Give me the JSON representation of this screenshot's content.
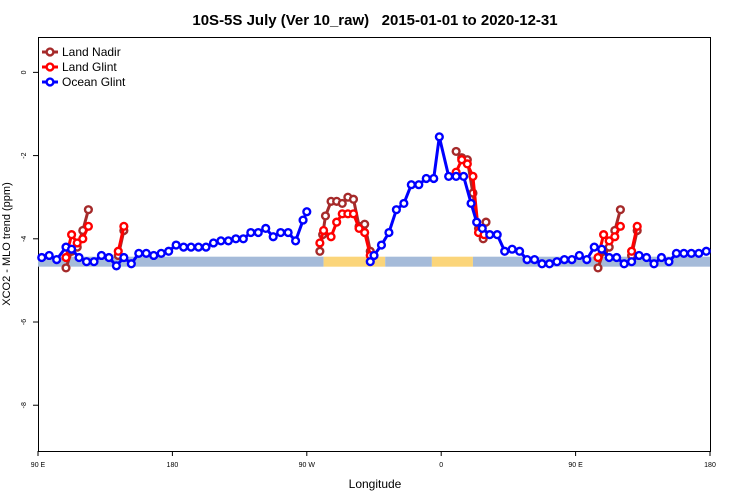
{
  "chart_data": {
    "type": "line",
    "title": "10S-5S July (Ver 10_raw)   2015-01-01 to 2020-12-31",
    "xlabel": "Longitude",
    "ylabel": "XCO2 - MLO trend (ppm)",
    "xlim": [
      90,
      450
    ],
    "ylim": [
      -9.1,
      0.85
    ],
    "x_ticks": [
      {
        "value": 90,
        "label": "90 E"
      },
      {
        "value": 162,
        "label": "180"
      },
      {
        "value": 234,
        "label": "90 W"
      },
      {
        "value": 306,
        "label": "0"
      },
      {
        "value": 378,
        "label": "90 E"
      },
      {
        "value": 450,
        "label": "180"
      }
    ],
    "y_ticks": [
      {
        "value": 0,
        "label": "0"
      },
      {
        "value": -2,
        "label": "-2"
      },
      {
        "value": -4,
        "label": "-4"
      },
      {
        "value": -6,
        "label": "-6"
      },
      {
        "value": -8,
        "label": "-8"
      }
    ],
    "legend_position": "top-left",
    "surface_band": {
      "y_center": -4.55,
      "segments": [
        {
          "from": 90,
          "to": 243,
          "type": "ocean",
          "color": "#a5bbd9"
        },
        {
          "from": 243,
          "to": 276,
          "type": "land",
          "color": "#fbd57a"
        },
        {
          "from": 276,
          "to": 301,
          "type": "ocean",
          "color": "#a5bbd9"
        },
        {
          "from": 301,
          "to": 323,
          "type": "land",
          "color": "#fbd57a"
        },
        {
          "from": 323,
          "to": 450,
          "type": "ocean",
          "color": "#a5bbd9"
        }
      ]
    },
    "series": [
      {
        "name": "Land Nadir",
        "color": "#a52a2a",
        "segments": [
          [
            [
              105,
              -4.7
            ],
            [
              108,
              -4.3
            ],
            [
              111,
              -4.2
            ],
            [
              114,
              -3.8
            ],
            [
              117,
              -3.3
            ]
          ],
          [
            [
              133,
              -4.4
            ],
            [
              136,
              -3.8
            ]
          ],
          [
            [
              241,
              -4.3
            ],
            [
              242.5,
              -3.9
            ],
            [
              244,
              -3.45
            ],
            [
              247,
              -3.1
            ],
            [
              250,
              -3.1
            ],
            [
              253,
              -3.15
            ],
            [
              256,
              -3.0
            ],
            [
              259,
              -3.05
            ],
            [
              262,
              -3.7
            ],
            [
              265,
              -3.65
            ],
            [
              268,
              -4.3
            ]
          ],
          [
            [
              314,
              -1.9
            ],
            [
              317,
              -2.05
            ],
            [
              320,
              -2.1
            ],
            [
              323,
              -2.9
            ],
            [
              326,
              -3.75
            ],
            [
              328.5,
              -4.0
            ],
            [
              330,
              -3.6
            ]
          ],
          [
            [
              390,
              -4.7
            ],
            [
              393,
              -4.3
            ],
            [
              396,
              -4.2
            ],
            [
              399,
              -3.8
            ],
            [
              402,
              -3.3
            ]
          ],
          [
            [
              408,
              -4.4
            ],
            [
              411,
              -3.8
            ]
          ]
        ]
      },
      {
        "name": "Land Glint",
        "color": "#ff0000",
        "segments": [
          [
            [
              105,
              -4.45
            ],
            [
              108,
              -3.9
            ],
            [
              111,
              -4.1
            ],
            [
              114,
              -4.0
            ],
            [
              117,
              -3.7
            ]
          ],
          [
            [
              133,
              -4.3
            ],
            [
              136,
              -3.7
            ]
          ],
          [
            [
              241,
              -4.1
            ],
            [
              243,
              -3.8
            ],
            [
              247,
              -3.95
            ],
            [
              250,
              -3.6
            ],
            [
              253,
              -3.4
            ],
            [
              256,
              -3.4
            ],
            [
              259,
              -3.4
            ],
            [
              262,
              -3.75
            ],
            [
              265,
              -3.85
            ],
            [
              268,
              -4.4
            ]
          ],
          [
            [
              314,
              -2.4
            ],
            [
              317,
              -2.1
            ],
            [
              320,
              -2.2
            ],
            [
              323,
              -2.5
            ],
            [
              326,
              -3.85
            ],
            [
              329,
              -3.9
            ]
          ],
          [
            [
              390,
              -4.45
            ],
            [
              393,
              -3.9
            ],
            [
              396,
              -4.05
            ],
            [
              399,
              -3.95
            ],
            [
              402,
              -3.7
            ]
          ],
          [
            [
              408,
              -4.3
            ],
            [
              411,
              -3.7
            ]
          ]
        ]
      },
      {
        "name": "Ocean Glint",
        "color": "#0000ff",
        "segments": [
          [
            [
              92,
              -4.45
            ],
            [
              96,
              -4.4
            ],
            [
              100,
              -4.5
            ],
            [
              105,
              -4.2
            ],
            [
              108,
              -4.25
            ],
            [
              112,
              -4.45
            ],
            [
              116,
              -4.55
            ],
            [
              120,
              -4.55
            ],
            [
              124,
              -4.4
            ],
            [
              128,
              -4.45
            ],
            [
              132,
              -4.65
            ],
            [
              136,
              -4.45
            ],
            [
              140,
              -4.6
            ],
            [
              144,
              -4.35
            ],
            [
              148,
              -4.35
            ],
            [
              152,
              -4.4
            ],
            [
              156,
              -4.35
            ],
            [
              160,
              -4.3
            ],
            [
              164,
              -4.15
            ],
            [
              168,
              -4.2
            ],
            [
              172,
              -4.2
            ],
            [
              176,
              -4.2
            ],
            [
              180,
              -4.2
            ],
            [
              184,
              -4.1
            ],
            [
              188,
              -4.05
            ],
            [
              192,
              -4.05
            ],
            [
              196,
              -4.0
            ],
            [
              200,
              -4.0
            ],
            [
              204,
              -3.85
            ],
            [
              208,
              -3.85
            ],
            [
              212,
              -3.75
            ],
            [
              216,
              -3.95
            ],
            [
              220,
              -3.85
            ],
            [
              224,
              -3.85
            ],
            [
              228,
              -4.05
            ],
            [
              232,
              -3.55
            ],
            [
              234,
              -3.35
            ]
          ],
          [
            [
              268,
              -4.55
            ],
            [
              270,
              -4.4
            ],
            [
              274,
              -4.15
            ],
            [
              278,
              -3.85
            ],
            [
              282,
              -3.3
            ],
            [
              286,
              -3.15
            ],
            [
              290,
              -2.7
            ],
            [
              294,
              -2.7
            ],
            [
              298,
              -2.55
            ],
            [
              302,
              -2.55
            ],
            [
              305,
              -1.55
            ],
            [
              310,
              -2.5
            ],
            [
              314,
              -2.5
            ],
            [
              318,
              -2.5
            ],
            [
              322,
              -3.15
            ],
            [
              325,
              -3.6
            ],
            [
              328,
              -3.75
            ],
            [
              332,
              -3.9
            ],
            [
              336,
              -3.9
            ],
            [
              340,
              -4.3
            ],
            [
              344,
              -4.25
            ],
            [
              348,
              -4.3
            ],
            [
              352,
              -4.5
            ],
            [
              356,
              -4.5
            ],
            [
              360,
              -4.6
            ],
            [
              364,
              -4.6
            ],
            [
              368,
              -4.55
            ],
            [
              372,
              -4.5
            ],
            [
              376,
              -4.5
            ],
            [
              380,
              -4.4
            ],
            [
              384,
              -4.5
            ],
            [
              388,
              -4.2
            ],
            [
              392,
              -4.25
            ],
            [
              396,
              -4.45
            ],
            [
              400,
              -4.45
            ],
            [
              404,
              -4.6
            ],
            [
              408,
              -4.55
            ],
            [
              412,
              -4.4
            ],
            [
              416,
              -4.45
            ],
            [
              420,
              -4.6
            ],
            [
              424,
              -4.45
            ],
            [
              428,
              -4.55
            ],
            [
              432,
              -4.35
            ],
            [
              436,
              -4.35
            ],
            [
              440,
              -4.35
            ],
            [
              444,
              -4.35
            ],
            [
              448,
              -4.3
            ]
          ]
        ]
      }
    ]
  }
}
